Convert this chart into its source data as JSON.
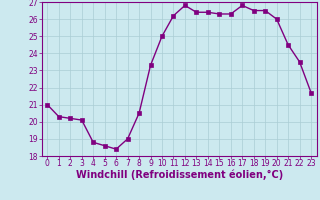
{
  "hours": [
    0,
    1,
    2,
    3,
    4,
    5,
    6,
    7,
    8,
    9,
    10,
    11,
    12,
    13,
    14,
    15,
    16,
    17,
    18,
    19,
    20,
    21,
    22,
    23
  ],
  "values": [
    21.0,
    20.3,
    20.2,
    20.1,
    18.8,
    18.6,
    18.4,
    19.0,
    20.5,
    23.3,
    25.0,
    26.2,
    26.8,
    26.4,
    26.4,
    26.3,
    26.3,
    26.8,
    26.5,
    26.5,
    26.0,
    24.5,
    23.5,
    21.7
  ],
  "line_color": "#800080",
  "marker": "s",
  "marker_size": 2.5,
  "bg_color": "#cce9ef",
  "grid_color": "#aacdd4",
  "xlabel": "Windchill (Refroidissement éolien,°C)",
  "ylim": [
    18,
    27
  ],
  "yticks": [
    18,
    19,
    20,
    21,
    22,
    23,
    24,
    25,
    26,
    27
  ],
  "xticks": [
    0,
    1,
    2,
    3,
    4,
    5,
    6,
    7,
    8,
    9,
    10,
    11,
    12,
    13,
    14,
    15,
    16,
    17,
    18,
    19,
    20,
    21,
    22,
    23
  ],
  "tick_label_size": 5.5,
  "xlabel_size": 7,
  "line_width": 1.0
}
